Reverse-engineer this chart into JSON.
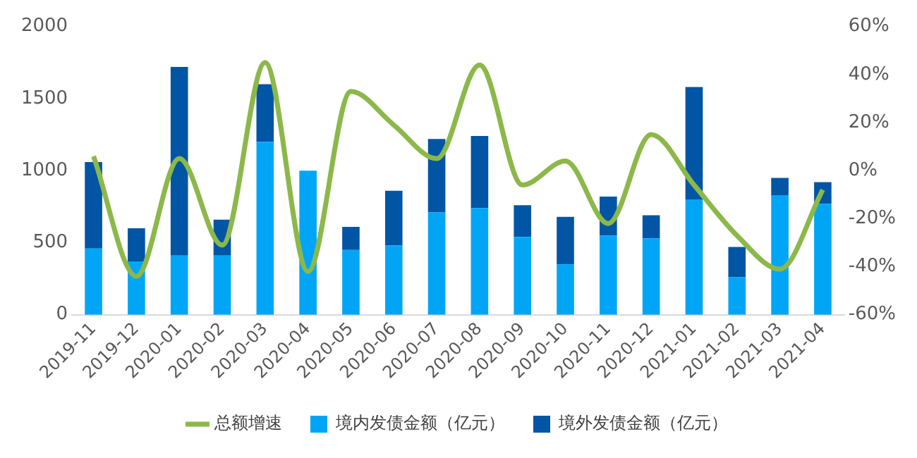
{
  "chart_data": {
    "type": "bar",
    "stacked": true,
    "categories": [
      "2019-11",
      "2019-12",
      "2020-01",
      "2020-02",
      "2020-03",
      "2020-04",
      "2020-05",
      "2020-06",
      "2020-07",
      "2020-08",
      "2020-09",
      "2020-10",
      "2020-11",
      "2020-12",
      "2021-01",
      "2021-02",
      "2021-03",
      "2021-04"
    ],
    "series": [
      {
        "name": "境内发债金额（亿元）",
        "color": "#00a6f5",
        "values": [
          460,
          370,
          410,
          410,
          1200,
          1000,
          450,
          480,
          710,
          740,
          540,
          350,
          550,
          530,
          800,
          260,
          830,
          770
        ]
      },
      {
        "name": "境外发债金额（亿元）",
        "color": "#0055a5",
        "values": [
          600,
          230,
          1310,
          250,
          400,
          0,
          160,
          380,
          510,
          500,
          220,
          330,
          270,
          160,
          780,
          210,
          120,
          150
        ]
      },
      {
        "name": "总额增速",
        "type": "line",
        "axis": "y2",
        "color": "#8cb84a",
        "values": [
          6,
          -44,
          5,
          -31,
          45,
          -42,
          33,
          19,
          5,
          44,
          -6,
          4,
          -22,
          15,
          -6,
          -27,
          -41,
          -8
        ]
      }
    ],
    "ylim": [
      0,
      2000
    ],
    "yticks": [
      0,
      500,
      1000,
      1500,
      2000
    ],
    "y2lim": [
      -60,
      60
    ],
    "y2ticks": [
      {
        "value": -60,
        "label": "-60%"
      },
      {
        "value": -40,
        "label": "-40%"
      },
      {
        "value": -20,
        "label": "-20%"
      },
      {
        "value": 0,
        "label": "0%"
      },
      {
        "value": 20,
        "label": "20%"
      },
      {
        "value": 40,
        "label": "40%"
      },
      {
        "value": 60,
        "label": "60%"
      }
    ],
    "grid": false,
    "legend": "bottom",
    "marker": "none"
  }
}
